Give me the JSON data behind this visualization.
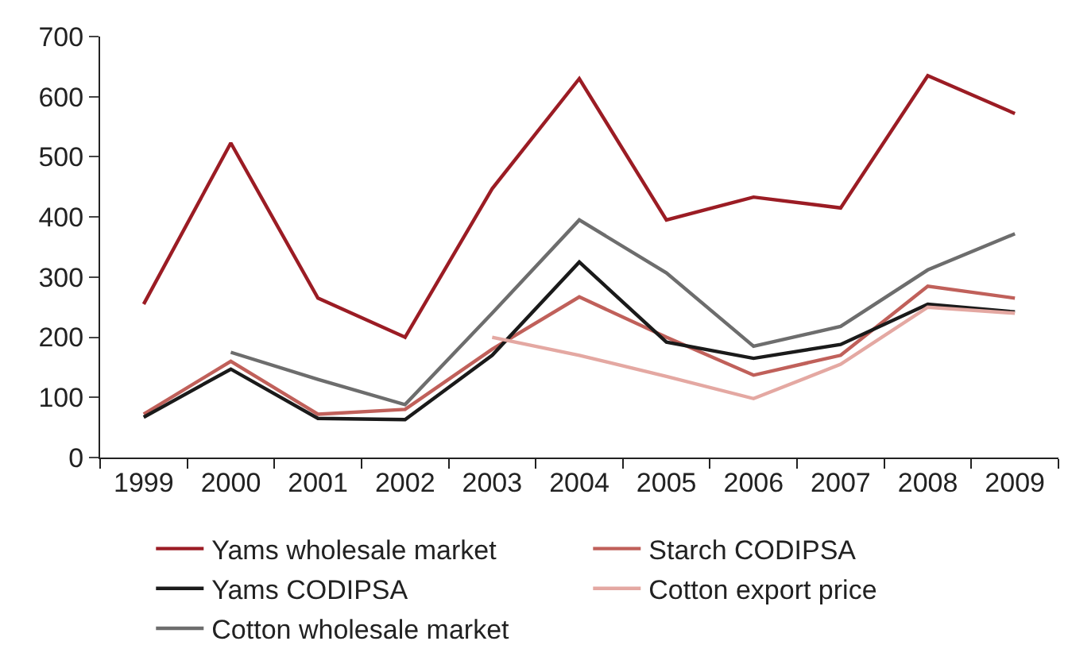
{
  "chart_data": {
    "type": "line",
    "categories": [
      "1999",
      "2000",
      "2001",
      "2002",
      "2003",
      "2004",
      "2005",
      "2006",
      "2007",
      "2008",
      "2009"
    ],
    "series": [
      {
        "name": "Yams wholesale market",
        "color": "#9b1c24",
        "values": [
          255,
          523,
          265,
          200,
          447,
          630,
          395,
          433,
          415,
          635,
          572
        ]
      },
      {
        "name": "Starch CODIPSA",
        "color": "#c0605a",
        "values": [
          72,
          160,
          72,
          80,
          180,
          267,
          200,
          137,
          170,
          285,
          265
        ]
      },
      {
        "name": "Yams CODIPSA",
        "color": "#1a1a1a",
        "values": [
          67,
          147,
          65,
          63,
          170,
          325,
          192,
          165,
          188,
          255,
          242
        ]
      },
      {
        "name": "Cotton export price",
        "color": "#e4a8a2",
        "values": [
          null,
          null,
          null,
          null,
          200,
          170,
          135,
          98,
          155,
          250,
          240
        ]
      },
      {
        "name": "Cotton wholesale market",
        "color": "#6d6d6d",
        "values": [
          null,
          175,
          130,
          88,
          240,
          395,
          307,
          185,
          218,
          312,
          372
        ]
      }
    ],
    "ylim": [
      0,
      700
    ],
    "yticks": [
      0,
      100,
      200,
      300,
      400,
      500,
      600,
      700
    ],
    "legend": "bottom",
    "marker": "none",
    "line_style": "solid"
  }
}
